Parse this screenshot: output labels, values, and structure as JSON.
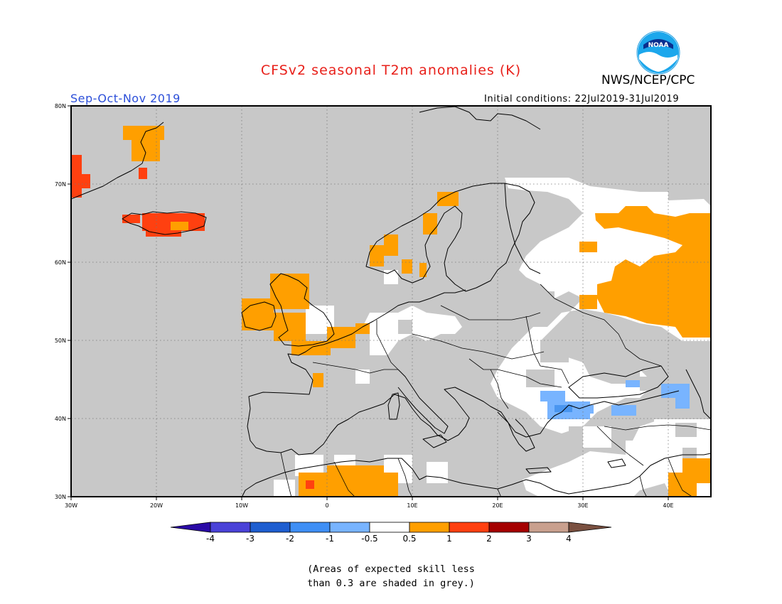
{
  "title": "CFSv2 seasonal T2m anomalies (K)",
  "organization": "NWS/NCEP/CPC",
  "logo_text": "NOAA",
  "season": "Sep-Oct-Nov 2019",
  "initial_conditions": "Initial conditions: 22Jul2019-31Jul2019",
  "note_line1": "(Areas of expected skill less",
  "note_line2": "than 0.3 are shaded in grey.)",
  "map": {
    "lon_range": [
      -30,
      45
    ],
    "lat_range": [
      30,
      80
    ],
    "lat_ticks": [
      "80N",
      "70N",
      "60N",
      "50N",
      "40N",
      "30N"
    ],
    "lon_ticks": [
      "30W",
      "20W",
      "10W",
      "0",
      "10E",
      "20E",
      "30E",
      "40E"
    ],
    "grid": true,
    "colors": {
      "low_skill": "#c8c8c8",
      "neutral": "#ffffff",
      "warm_1": "#ff9f00",
      "warm_2": "#ff4010",
      "cool_1": "#78b4ff",
      "cool_2": "#4a96f0"
    }
  },
  "colorbar": {
    "labels": [
      "-4",
      "-3",
      "-2",
      "-1",
      "-0.5",
      "0.5",
      "1",
      "2",
      "3",
      "4"
    ],
    "colors": [
      "#2a0aa6",
      "#4a42d8",
      "#1e5ed0",
      "#3f8ff5",
      "#78b4ff",
      "#ffffff",
      "#ff9f00",
      "#ff4010",
      "#a50000",
      "#c9a08e",
      "#7a5040"
    ]
  }
}
